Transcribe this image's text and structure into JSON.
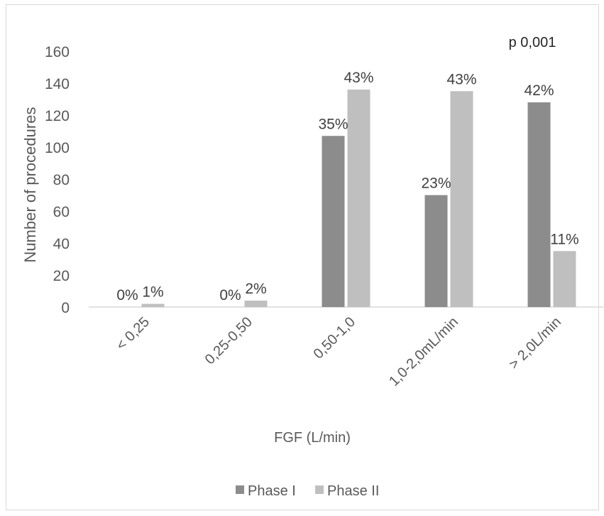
{
  "chart_data": {
    "type": "bar",
    "annotation": "p 0,001",
    "xlabel": "FGF (L/min)",
    "ylabel": "Number of procedures",
    "ylim": [
      0,
      160
    ],
    "yticks": [
      "0",
      "20",
      "40",
      "60",
      "80",
      "100",
      "120",
      "140",
      "160"
    ],
    "categories": [
      "< 0,25",
      "0,25-0,50",
      "0,50-1,0",
      "1,0-2,0mL/min",
      "> 2,0L/min"
    ],
    "series": [
      {
        "name": "Phase I",
        "color": "#8c8c8c",
        "values": [
          0,
          0,
          107,
          70,
          128
        ],
        "labels": [
          "0%",
          "0%",
          "35%",
          "23%",
          "42%"
        ]
      },
      {
        "name": "Phase II",
        "color": "#bfbfbf",
        "values": [
          2,
          4,
          136,
          135,
          35
        ],
        "labels": [
          "1%",
          "2%",
          "43%",
          "43%",
          "11%"
        ]
      }
    ],
    "grid": false,
    "legend_position": "bottom"
  }
}
